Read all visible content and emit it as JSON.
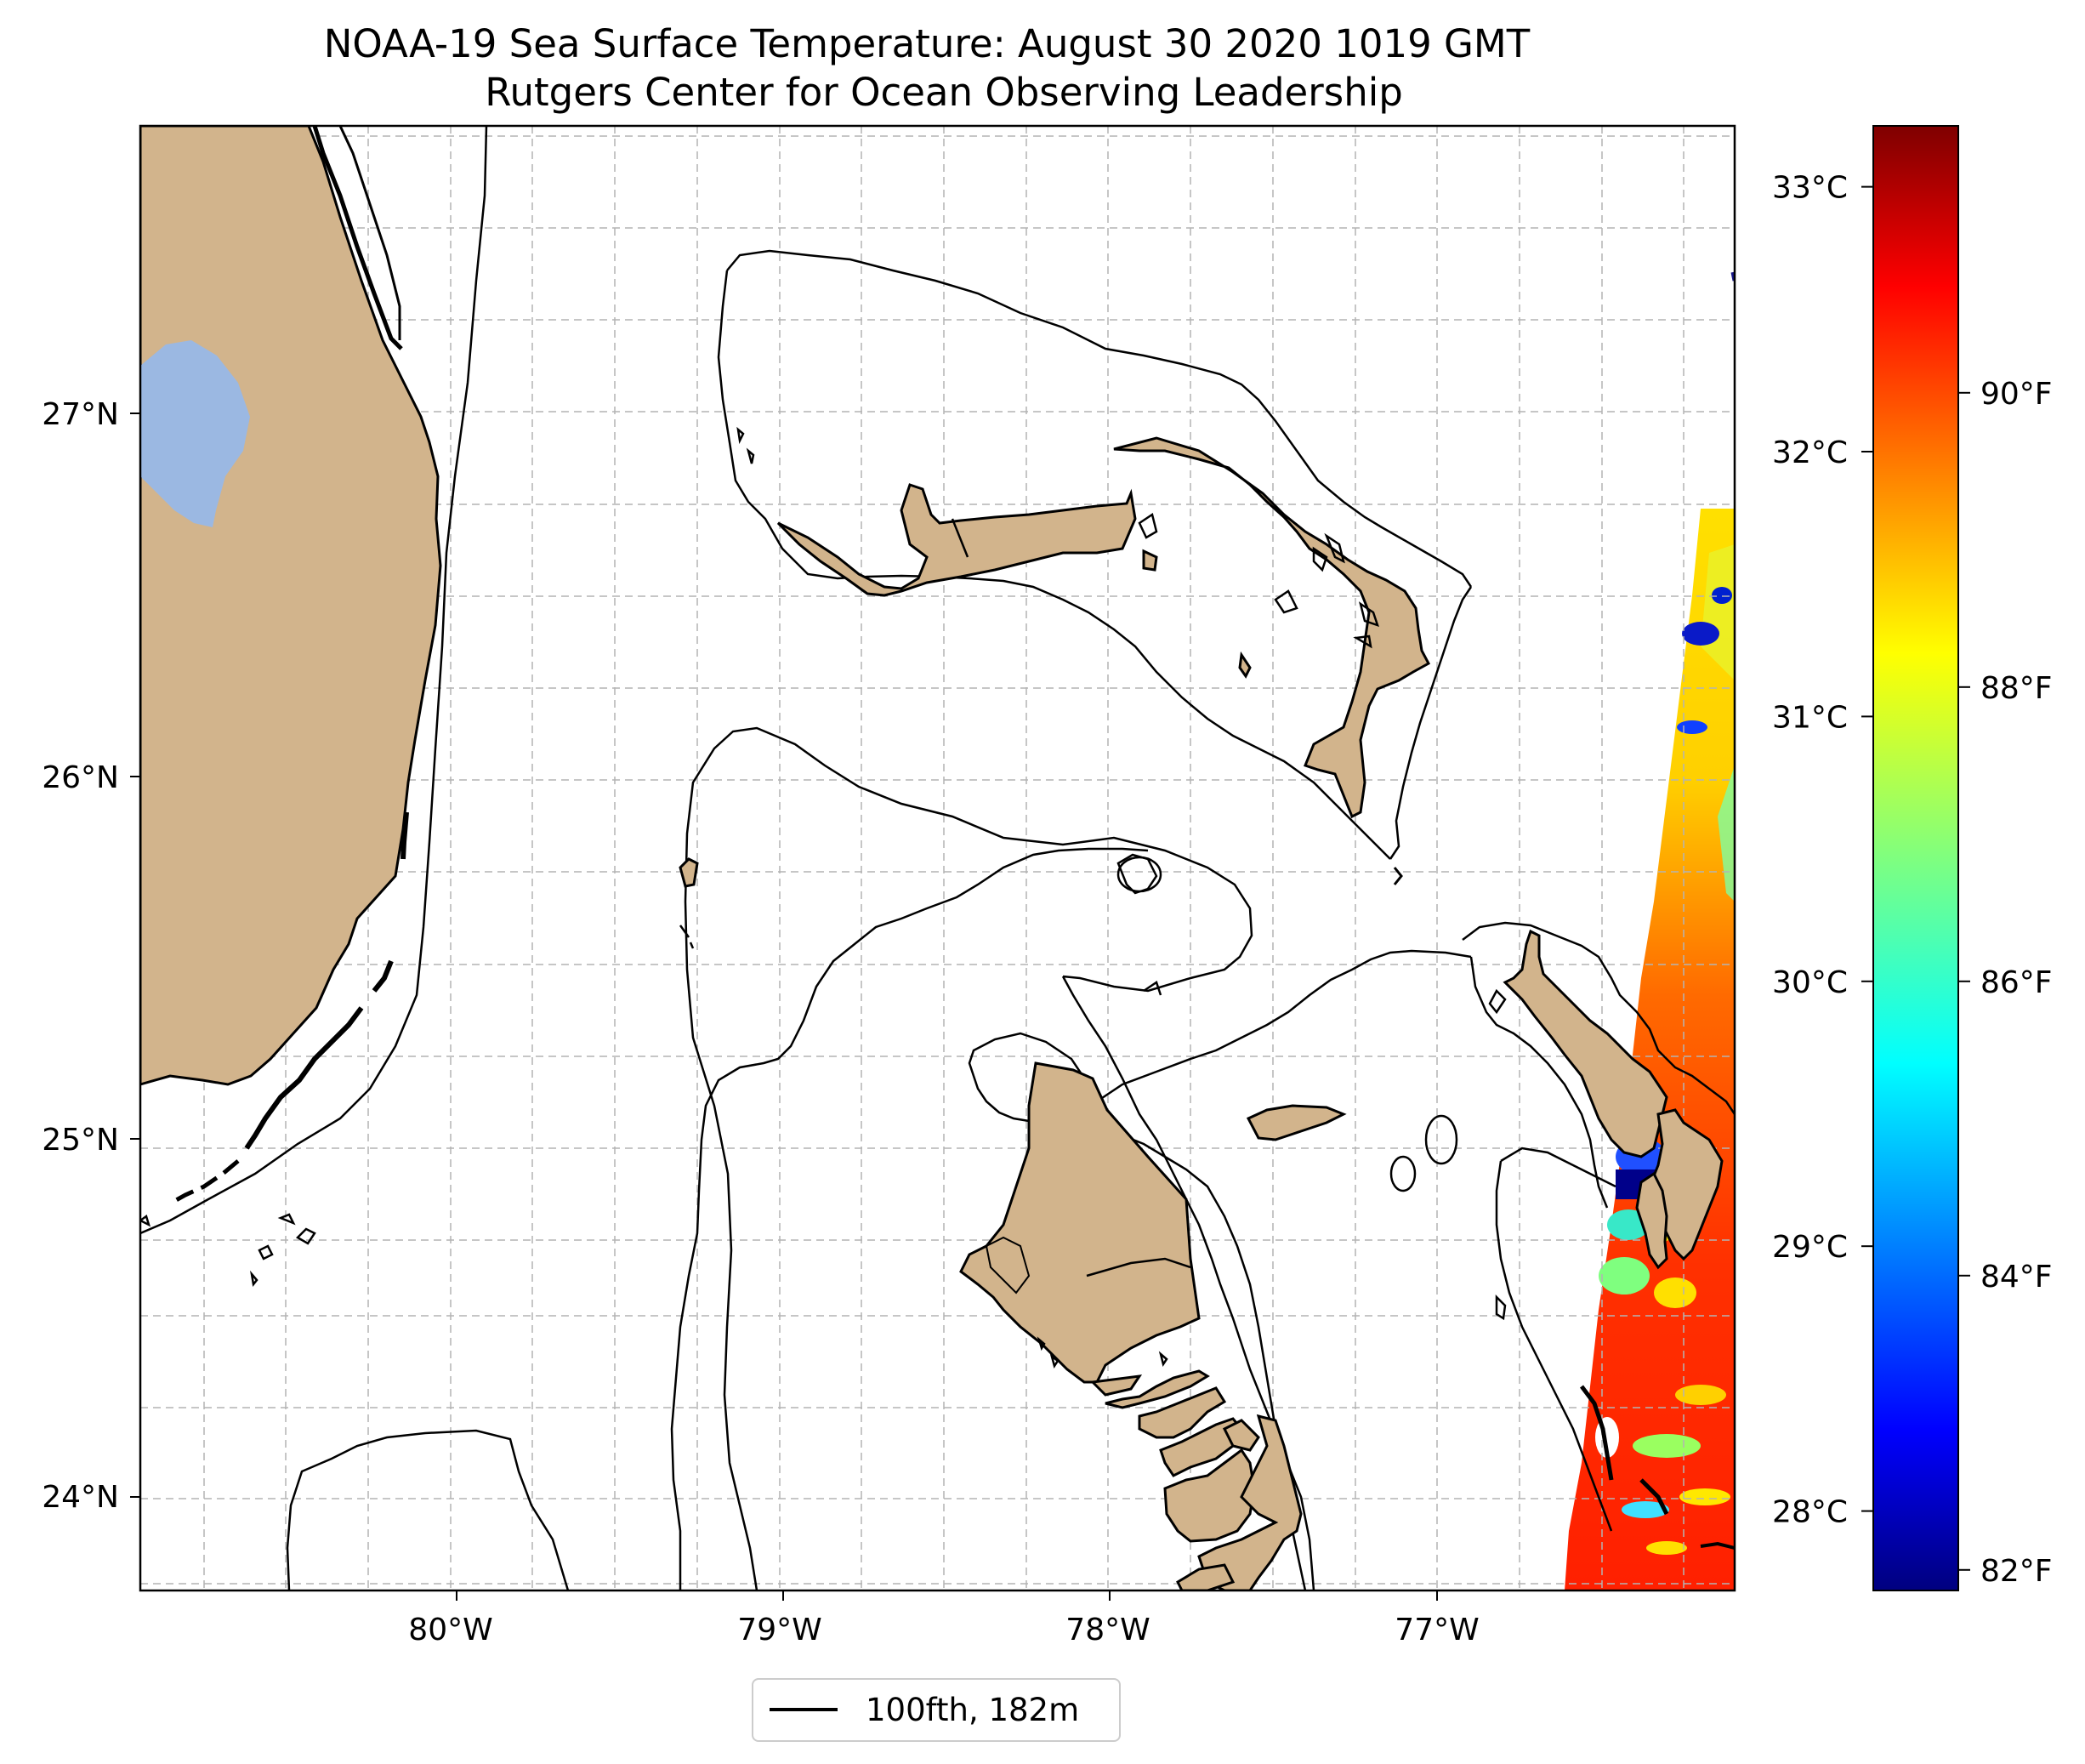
{
  "title": {
    "line1": "NOAA-19 Sea Surface Temperature: August 30 2020 1019 GMT",
    "line2": "Rutgers Center for Ocean Observing Leadership"
  },
  "map": {
    "lon_range": [
      -80.96,
      -76.09
    ],
    "lat_range": [
      23.74,
      27.79
    ],
    "lon_ticks": [
      {
        "value": -80,
        "label": "80°W"
      },
      {
        "value": -79,
        "label": "79°W"
      },
      {
        "value": -78,
        "label": "78°W"
      },
      {
        "value": -77,
        "label": "77°W"
      }
    ],
    "lat_ticks": [
      {
        "value": 24,
        "label": "24°N"
      },
      {
        "value": 25,
        "label": "25°N"
      },
      {
        "value": 26,
        "label": "26°N"
      },
      {
        "value": 27,
        "label": "27°N"
      }
    ],
    "gridlines": true,
    "land_color": "#d2b48c",
    "lake_color": "#9bb8e2",
    "contour_label": "100fth, 182m"
  },
  "colorbar": {
    "celsius_range": [
      27.7,
      33.23
    ],
    "celsius_ticks": [
      {
        "value": 28,
        "label": "28°C"
      },
      {
        "value": 29,
        "label": "29°C"
      },
      {
        "value": 30,
        "label": "30°C"
      },
      {
        "value": 31,
        "label": "31°C"
      },
      {
        "value": 32,
        "label": "32°C"
      },
      {
        "value": 33,
        "label": "33°C"
      }
    ],
    "fahrenheit_ticks": [
      {
        "value": 82,
        "label": "82°F"
      },
      {
        "value": 84,
        "label": "84°F"
      },
      {
        "value": 86,
        "label": "86°F"
      },
      {
        "value": 88,
        "label": "88°F"
      },
      {
        "value": 90,
        "label": "90°F"
      }
    ],
    "colormap": "jet"
  },
  "legend": {
    "label": "100fth, 182m",
    "position": "bottom-center"
  }
}
